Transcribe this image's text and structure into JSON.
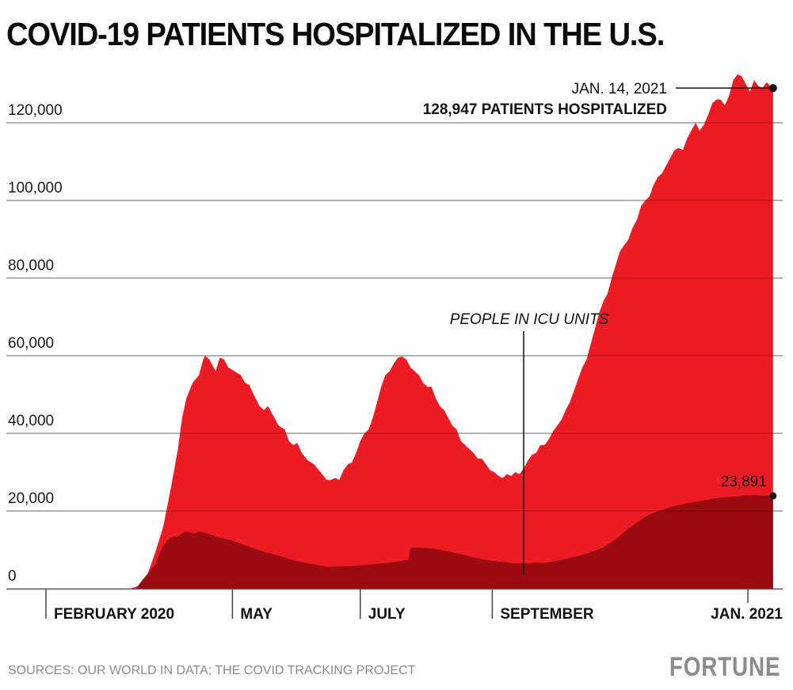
{
  "header": {
    "title": "COVID-19 PATIENTS HOSPITALIZED IN THE U.S."
  },
  "footer": {
    "source": "SOURCES: OUR WORLD IN DATA; THE COVID TRACKING PROJECT",
    "logo": "FORTUNE"
  },
  "colors": {
    "hospitalized": "#ec1c24",
    "icu": "#9b0a10",
    "grid": "#bdbdbd",
    "axis": "#333333",
    "text": "#111111"
  },
  "chart_data": {
    "type": "area",
    "title": "COVID-19 PATIENTS HOSPITALIZED IN THE U.S.",
    "xlabel": "",
    "ylabel": "",
    "x_unit": "days since 2020-02-01",
    "xlim": [
      -10,
      348
    ],
    "ylim": [
      0,
      130000
    ],
    "grid": true,
    "legend": "none",
    "yticks": [
      {
        "value": 0,
        "label": "0"
      },
      {
        "value": 20000,
        "label": "20,000"
      },
      {
        "value": 40000,
        "label": "40,000"
      },
      {
        "value": 60000,
        "label": "60,000"
      },
      {
        "value": 80000,
        "label": "80,000"
      },
      {
        "value": 100000,
        "label": "100,000"
      },
      {
        "value": 120000,
        "label": "120,000"
      }
    ],
    "xticks": [
      {
        "day": 0,
        "label": "FEBRUARY 2020"
      },
      {
        "day": 89,
        "label": "MAY"
      },
      {
        "day": 150,
        "label": "JULY"
      },
      {
        "day": 213,
        "label": "SEPTEMBER"
      },
      {
        "day": 335,
        "label": "JAN. 2021"
      }
    ],
    "series": [
      {
        "name": "Hospitalized",
        "points": [
          [
            0,
            0
          ],
          [
            40,
            0
          ],
          [
            45,
            800
          ],
          [
            48,
            3000
          ],
          [
            52,
            9000
          ],
          [
            56,
            16000
          ],
          [
            60,
            27000
          ],
          [
            63,
            36000
          ],
          [
            65,
            44000
          ],
          [
            67,
            49000
          ],
          [
            70,
            53000
          ],
          [
            73,
            55000
          ],
          [
            75,
            59000
          ],
          [
            76,
            60000
          ],
          [
            78,
            59000
          ],
          [
            81,
            56000
          ],
          [
            83,
            59500
          ],
          [
            85,
            59000
          ],
          [
            87,
            57000
          ],
          [
            90,
            56000
          ],
          [
            93,
            55000
          ],
          [
            95,
            53000
          ],
          [
            97,
            52500
          ],
          [
            100,
            49000
          ],
          [
            102,
            47000
          ],
          [
            104,
            46000
          ],
          [
            106,
            47000
          ],
          [
            108,
            45000
          ],
          [
            111,
            42000
          ],
          [
            114,
            41000
          ],
          [
            116,
            38000
          ],
          [
            118,
            37000
          ],
          [
            120,
            37500
          ],
          [
            122,
            35000
          ],
          [
            125,
            33000
          ],
          [
            128,
            32000
          ],
          [
            131,
            30000
          ],
          [
            134,
            28000
          ],
          [
            136,
            28000
          ],
          [
            138,
            28500
          ],
          [
            140,
            28000
          ],
          [
            142,
            30500
          ],
          [
            144,
            32000
          ],
          [
            146,
            32500
          ],
          [
            148,
            35000
          ],
          [
            150,
            38000
          ],
          [
            152,
            40000
          ],
          [
            154,
            41000
          ],
          [
            156,
            44000
          ],
          [
            158,
            48000
          ],
          [
            160,
            52000
          ],
          [
            162,
            55000
          ],
          [
            164,
            56000
          ],
          [
            166,
            58000
          ],
          [
            168,
            59500
          ],
          [
            170,
            59800
          ],
          [
            172,
            59000
          ],
          [
            174,
            57000
          ],
          [
            176,
            56000
          ],
          [
            178,
            55000
          ],
          [
            180,
            53000
          ],
          [
            182,
            52000
          ],
          [
            184,
            52000
          ],
          [
            186,
            49000
          ],
          [
            188,
            47000
          ],
          [
            190,
            46000
          ],
          [
            192,
            44000
          ],
          [
            194,
            42000
          ],
          [
            196,
            41000
          ],
          [
            198,
            38000
          ],
          [
            200,
            37000
          ],
          [
            202,
            36000
          ],
          [
            204,
            35000
          ],
          [
            206,
            33500
          ],
          [
            208,
            33500
          ],
          [
            210,
            32000
          ],
          [
            212,
            30500
          ],
          [
            214,
            30000
          ],
          [
            216,
            29000
          ],
          [
            218,
            28500
          ],
          [
            220,
            29500
          ],
          [
            222,
            29000
          ],
          [
            224,
            30000
          ],
          [
            226,
            29500
          ],
          [
            228,
            31000
          ],
          [
            230,
            33000
          ],
          [
            232,
            34500
          ],
          [
            234,
            35000
          ],
          [
            236,
            37000
          ],
          [
            238,
            37000
          ],
          [
            240,
            38500
          ],
          [
            242,
            40500
          ],
          [
            244,
            42000
          ],
          [
            246,
            43500
          ],
          [
            248,
            46000
          ],
          [
            250,
            48000
          ],
          [
            252,
            51000
          ],
          [
            254,
            54000
          ],
          [
            256,
            57000
          ],
          [
            258,
            59000
          ],
          [
            260,
            63000
          ],
          [
            262,
            67000
          ],
          [
            264,
            71000
          ],
          [
            266,
            74000
          ],
          [
            268,
            76000
          ],
          [
            270,
            80000
          ],
          [
            272,
            83500
          ],
          [
            274,
            87000
          ],
          [
            276,
            88500
          ],
          [
            278,
            90000
          ],
          [
            280,
            93000
          ],
          [
            282,
            95000
          ],
          [
            284,
            98500
          ],
          [
            286,
            100000
          ],
          [
            288,
            101000
          ],
          [
            290,
            104000
          ],
          [
            292,
            106000
          ],
          [
            294,
            107000
          ],
          [
            296,
            109000
          ],
          [
            298,
            111000
          ],
          [
            300,
            113000
          ],
          [
            302,
            113500
          ],
          [
            304,
            113000
          ],
          [
            306,
            116000
          ],
          [
            308,
            118000
          ],
          [
            310,
            120000
          ],
          [
            312,
            118000
          ],
          [
            314,
            119500
          ],
          [
            316,
            122000
          ],
          [
            318,
            125000
          ],
          [
            320,
            126000
          ],
          [
            322,
            126000
          ],
          [
            324,
            124500
          ],
          [
            326,
            127000
          ],
          [
            328,
            131000
          ],
          [
            330,
            132500
          ],
          [
            332,
            132000
          ],
          [
            334,
            130000
          ],
          [
            336,
            128000
          ],
          [
            338,
            131000
          ],
          [
            340,
            129500
          ],
          [
            342,
            129000
          ],
          [
            344,
            130500
          ],
          [
            346,
            129200
          ],
          [
            347,
            128947
          ]
        ]
      },
      {
        "name": "People in ICU units",
        "points": [
          [
            0,
            0
          ],
          [
            43,
            0
          ],
          [
            45,
            1500
          ],
          [
            48,
            3500
          ],
          [
            52,
            6000
          ],
          [
            54,
            9000
          ],
          [
            56,
            11000
          ],
          [
            58,
            12500
          ],
          [
            61,
            13500
          ],
          [
            63,
            13500
          ],
          [
            65,
            14200
          ],
          [
            67,
            14800
          ],
          [
            69,
            14500
          ],
          [
            71,
            14200
          ],
          [
            73,
            14800
          ],
          [
            75,
            14500
          ],
          [
            78,
            14000
          ],
          [
            81,
            13500
          ],
          [
            84,
            13000
          ],
          [
            88,
            12500
          ],
          [
            92,
            11800
          ],
          [
            96,
            11000
          ],
          [
            100,
            10200
          ],
          [
            104,
            9500
          ],
          [
            108,
            8900
          ],
          [
            112,
            8300
          ],
          [
            116,
            7700
          ],
          [
            120,
            7100
          ],
          [
            125,
            6500
          ],
          [
            130,
            6000
          ],
          [
            135,
            5600
          ],
          [
            140,
            5700
          ],
          [
            145,
            5800
          ],
          [
            150,
            6000
          ],
          [
            155,
            6200
          ],
          [
            160,
            6500
          ],
          [
            165,
            6700
          ],
          [
            170,
            7200
          ],
          [
            173,
            7400
          ],
          [
            174,
            10500
          ],
          [
            178,
            10500
          ],
          [
            182,
            10400
          ],
          [
            186,
            10200
          ],
          [
            190,
            9800
          ],
          [
            194,
            9300
          ],
          [
            198,
            8900
          ],
          [
            202,
            8300
          ],
          [
            206,
            7800
          ],
          [
            210,
            7400
          ],
          [
            214,
            7100
          ],
          [
            218,
            6900
          ],
          [
            222,
            6600
          ],
          [
            226,
            6500
          ],
          [
            230,
            6500
          ],
          [
            234,
            6700
          ],
          [
            238,
            6600
          ],
          [
            242,
            7000
          ],
          [
            246,
            7400
          ],
          [
            250,
            7900
          ],
          [
            254,
            8400
          ],
          [
            258,
            9000
          ],
          [
            262,
            9800
          ],
          [
            266,
            10700
          ],
          [
            270,
            12000
          ],
          [
            274,
            13600
          ],
          [
            278,
            15500
          ],
          [
            282,
            17000
          ],
          [
            286,
            18500
          ],
          [
            290,
            19500
          ],
          [
            294,
            20300
          ],
          [
            298,
            21000
          ],
          [
            302,
            21500
          ],
          [
            306,
            22000
          ],
          [
            310,
            22400
          ],
          [
            314,
            22700
          ],
          [
            318,
            23100
          ],
          [
            322,
            23400
          ],
          [
            326,
            23600
          ],
          [
            330,
            23800
          ],
          [
            334,
            24000
          ],
          [
            338,
            24100
          ],
          [
            342,
            23900
          ],
          [
            347,
            23891
          ]
        ]
      }
    ],
    "annotations": [
      {
        "id": "peak",
        "date_label": "JAN. 14, 2021",
        "value_label": "128,947 PATIENTS HOSPITALIZED",
        "day": 347,
        "value": 128947
      },
      {
        "id": "icu",
        "value_label": "23,891",
        "day": 347,
        "value": 23891
      },
      {
        "id": "icu-label",
        "text": "PEOPLE IN ICU UNITS",
        "day": 226,
        "value": 6500
      }
    ]
  }
}
